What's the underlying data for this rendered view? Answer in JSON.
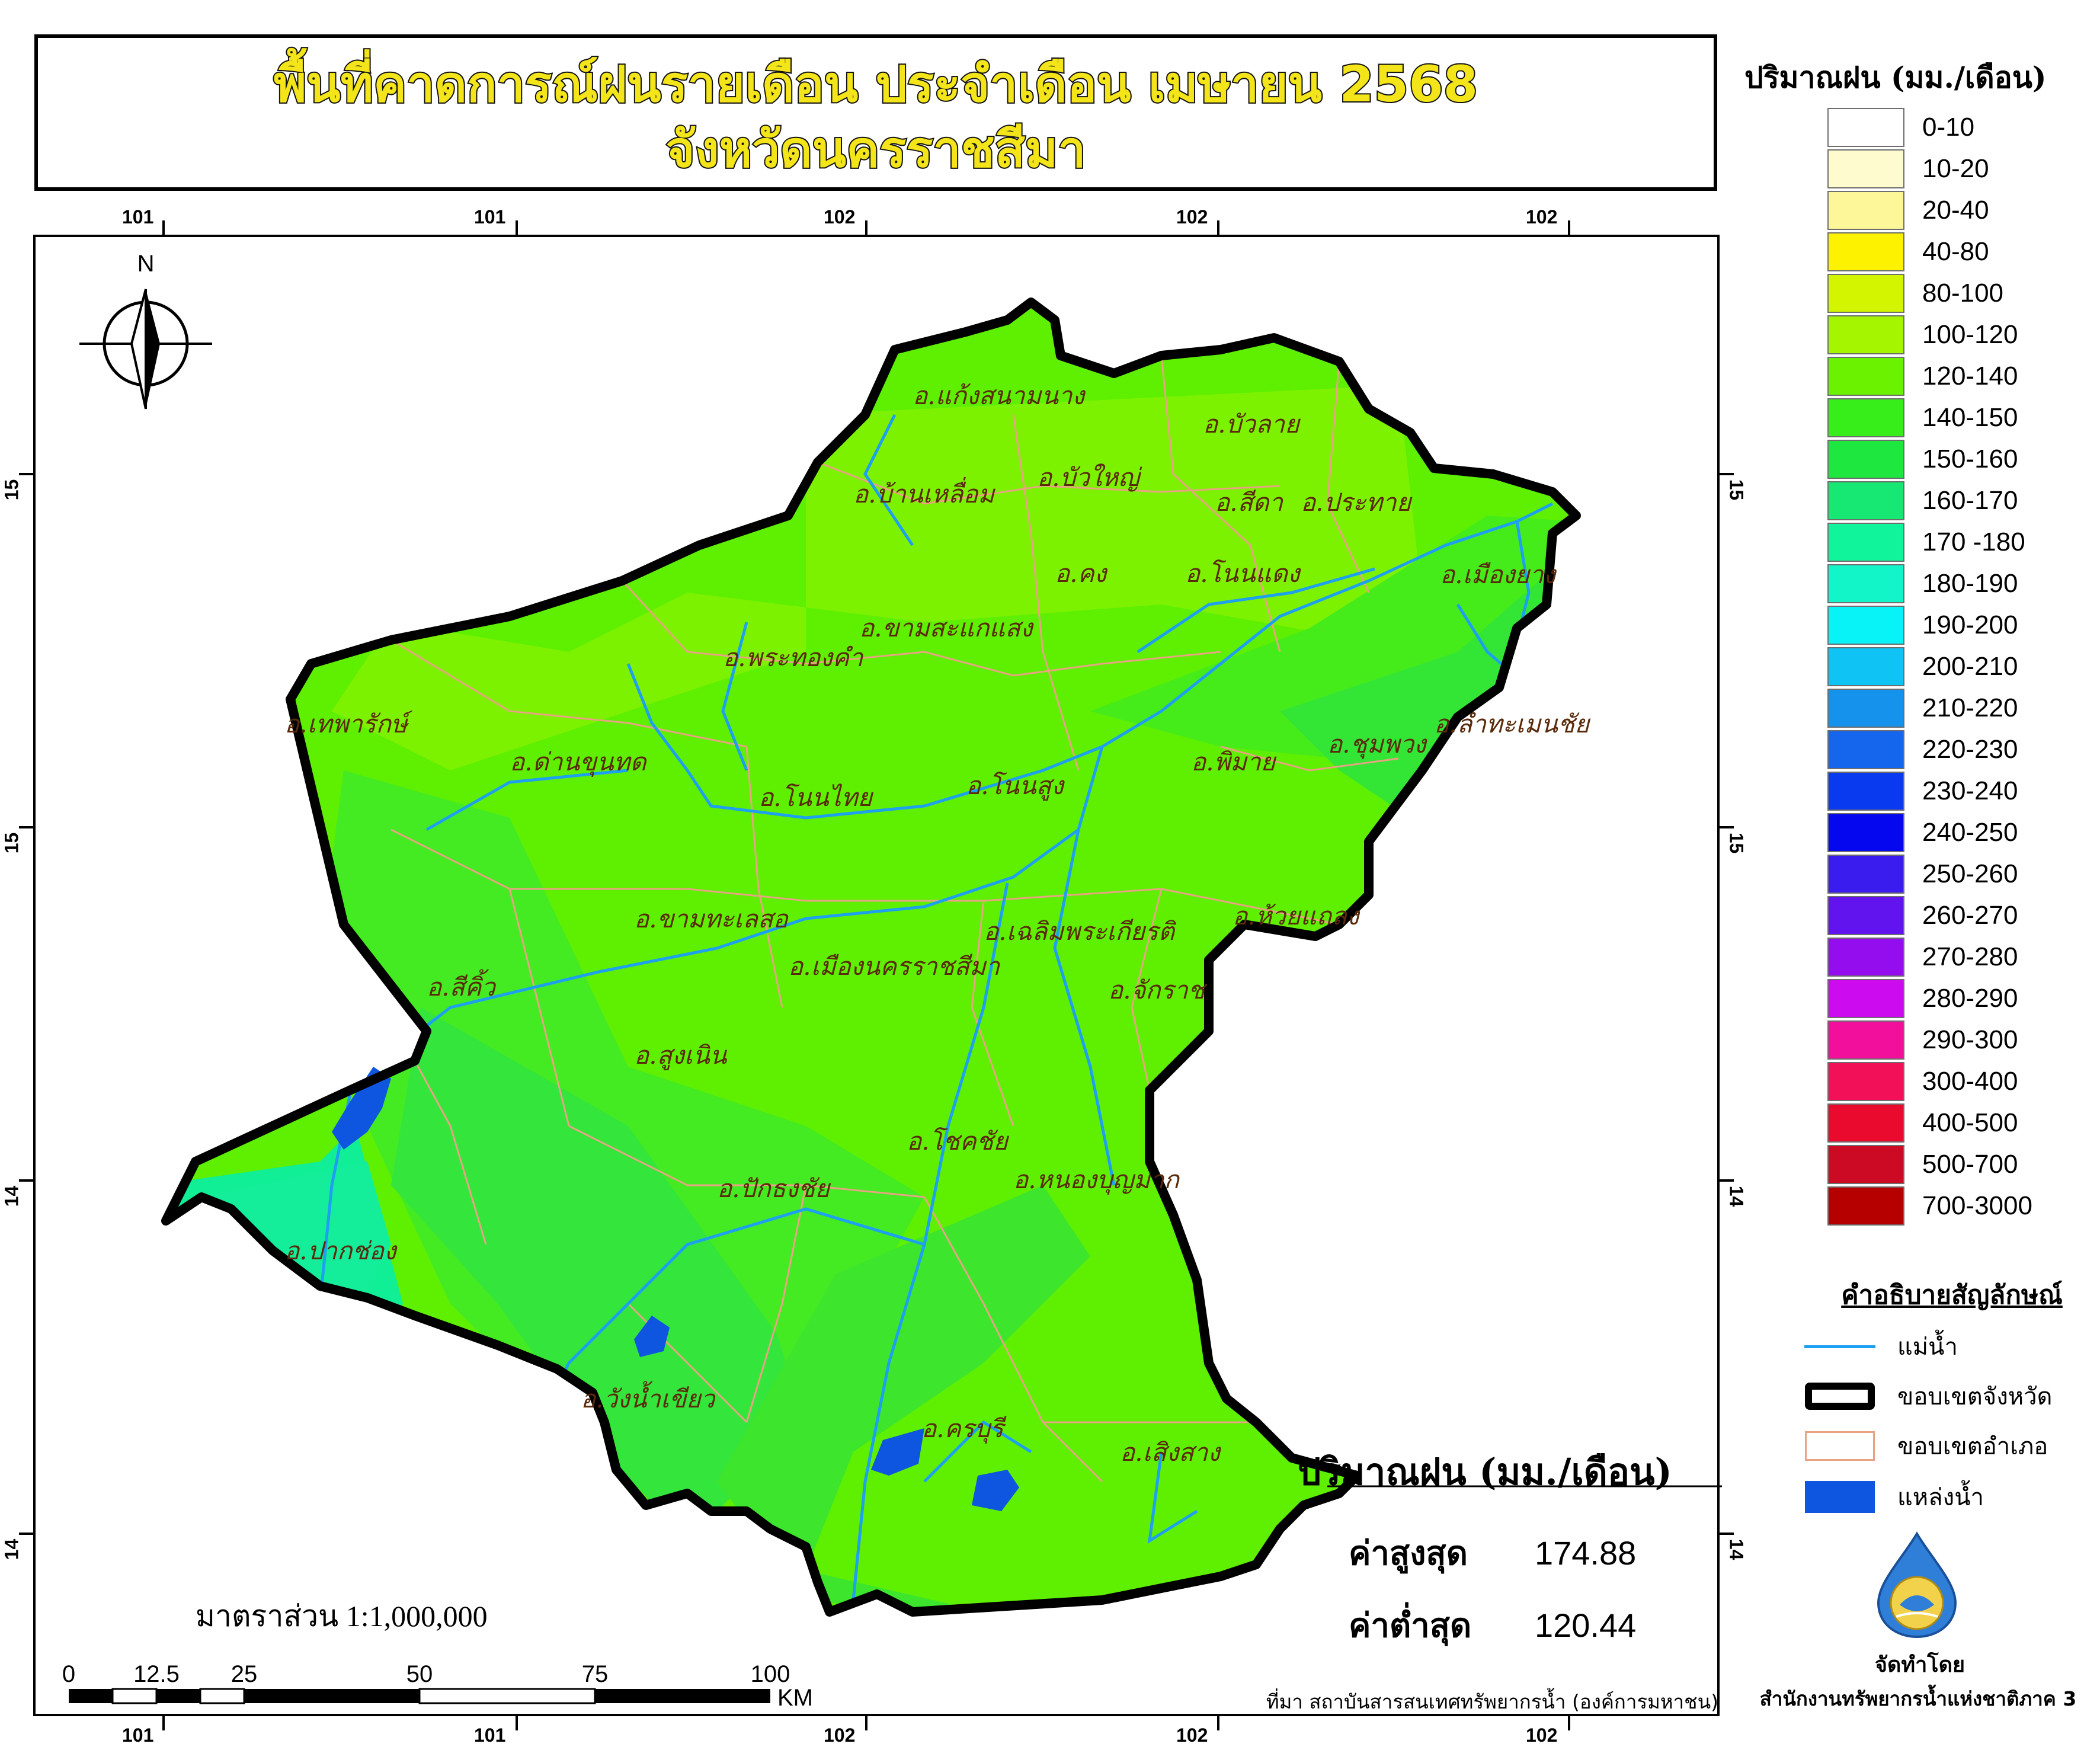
{
  "title": {
    "line1": "พื้นที่คาดการณ์ฝนรายเดือน ประจำเดือน เมษายน 2568",
    "line2": "จังหวัดนครราชสีมา"
  },
  "grid": {
    "top_ticks": [
      "101",
      "101",
      "102",
      "102",
      "102"
    ],
    "bottom_ticks": [
      "101",
      "101",
      "102",
      "102",
      "102"
    ],
    "left_ticks": [
      "15",
      "15",
      "14",
      "14"
    ],
    "right_ticks": [
      "15",
      "15",
      "14",
      "14"
    ]
  },
  "north_label": "N",
  "districts": [
    {
      "name": "อ.แก้งสนามนาง"
    },
    {
      "name": "อ.บัวลาย"
    },
    {
      "name": "อ.บ้านเหลื่อม"
    },
    {
      "name": "อ.บัวใหญ่"
    },
    {
      "name": "อ.สีดา"
    },
    {
      "name": "อ.ประทาย"
    },
    {
      "name": "อ.คง"
    },
    {
      "name": "อ.โนนแดง"
    },
    {
      "name": "อ.เมืองยาง"
    },
    {
      "name": "อ.ขามสะแกแสง"
    },
    {
      "name": "อ.พระทองคำ"
    },
    {
      "name": "อ.เทพารักษ์"
    },
    {
      "name": "อ.ลำทะเมนชัย"
    },
    {
      "name": "อ.ชุมพวง"
    },
    {
      "name": "อ.ด่านขุนทด"
    },
    {
      "name": "อ.พิมาย"
    },
    {
      "name": "อ.โนนไทย"
    },
    {
      "name": "อ.โนนสูง"
    },
    {
      "name": "อ.ขามทะเลสอ"
    },
    {
      "name": "อ.ห้วยแถลง"
    },
    {
      "name": "อ.เฉลิมพระเกียรติ"
    },
    {
      "name": "อ.เมืองนครราชสีมา"
    },
    {
      "name": "อ.สีคิ้ว"
    },
    {
      "name": "อ.จักราช"
    },
    {
      "name": "อ.สูงเนิน"
    },
    {
      "name": "อ.โชคชัย"
    },
    {
      "name": "อ.หนองบุญมาก"
    },
    {
      "name": "อ.ปักธงชัย"
    },
    {
      "name": "อ.ปากช่อง"
    },
    {
      "name": "อ.วังน้ำเขียว"
    },
    {
      "name": "อ.ครบุรี"
    },
    {
      "name": "อ.เสิงสาง"
    }
  ],
  "legend": {
    "title": "ปริมาณฝน (มม./เดือน)",
    "classes": [
      {
        "label": "0-10",
        "color": "#ffffff"
      },
      {
        "label": "10-20",
        "color": "#fefccf"
      },
      {
        "label": "20-40",
        "color": "#fdf79a"
      },
      {
        "label": "40-80",
        "color": "#fdf200"
      },
      {
        "label": "80-100",
        "color": "#d3f500"
      },
      {
        "label": "100-120",
        "color": "#a6f500"
      },
      {
        "label": "120-140",
        "color": "#6af200"
      },
      {
        "label": "140-150",
        "color": "#38ee1a"
      },
      {
        "label": "150-160",
        "color": "#1ee840"
      },
      {
        "label": "160-170",
        "color": "#16e873"
      },
      {
        "label": "170 -180",
        "color": "#10f59c"
      },
      {
        "label": "180-190",
        "color": "#11f5c8"
      },
      {
        "label": "190-200",
        "color": "#08f3f8"
      },
      {
        "label": "200-210",
        "color": "#0fc4f5"
      },
      {
        "label": "210-220",
        "color": "#1592ec"
      },
      {
        "label": "220-230",
        "color": "#1566ec"
      },
      {
        "label": "230-240",
        "color": "#0a3af0"
      },
      {
        "label": "240-250",
        "color": "#0508ee"
      },
      {
        "label": "250-260",
        "color": "#3a1cee"
      },
      {
        "label": "260-270",
        "color": "#6214ee"
      },
      {
        "label": "270-280",
        "color": "#930dee"
      },
      {
        "label": "280-290",
        "color": "#cc0bee"
      },
      {
        "label": "290-300",
        "color": "#f20f9c"
      },
      {
        "label": "300-400",
        "color": "#f21058"
      },
      {
        "label": "400-500",
        "color": "#ea0a2e"
      },
      {
        "label": "500-700",
        "color": "#cc0a24"
      },
      {
        "label": "700-3000",
        "color": "#b60000"
      }
    ]
  },
  "symbols": {
    "title": "คำอธิบายสัญลักษณ์",
    "items": [
      {
        "label": "แม่น้ำ"
      },
      {
        "label": "ขอบเขตจังหวัด"
      },
      {
        "label": "ขอบเขตอำเภอ"
      },
      {
        "label": "แหล่งน้ำ"
      }
    ]
  },
  "stats": {
    "title": "ปริมาณฝน (มม./เดือน)",
    "max_label": "ค่าสูงสุด",
    "max_value": "174.88",
    "min_label": "ค่าต่ำสุด",
    "min_value": "120.44"
  },
  "scale": {
    "text": "มาตราส่วน 1:1,000,000",
    "ticks": [
      "0",
      "12.5",
      "25",
      "50",
      "75",
      "100"
    ],
    "unit": "KM"
  },
  "credits": {
    "source": "ที่มา  สถาบันสารสนเทศทรัพยากรน้ำ (องค์การมหาชน)",
    "made_by": "จัดทำโดย",
    "org": "สำนักงานทรัพยากรน้ำแห่งชาติภาค 3"
  },
  "colors": {
    "province_fill_main": "#5ef000",
    "province_fill_light": "#7df200",
    "province_fill_dark": "#30e833",
    "province_fill_teal": "#10ee96",
    "boundary": "#000000",
    "river": "#1ea0f0",
    "district_line": "#e7a384",
    "waterbody": "#0e55e0",
    "label": "#5a2a0a"
  }
}
